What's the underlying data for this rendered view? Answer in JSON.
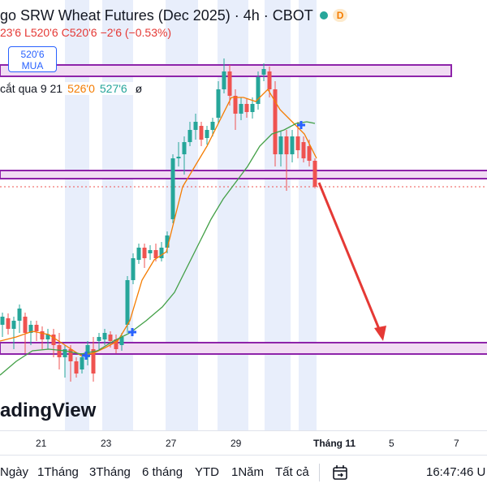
{
  "header": {
    "title": "go SRW Wheat Futures (Dec 2025) · 4h · CBOT",
    "status_badge": "D",
    "ohlc": {
      "open": "23'6",
      "low": "L520'6",
      "close": "C520'6",
      "change": "−2'6 (−0.53%)"
    }
  },
  "price_box": {
    "price": "520'6",
    "action": "MUA"
  },
  "indicator": {
    "label": "cắt qua 9 21",
    "ma_fast": "526'0",
    "ma_slow": "527'6",
    "symbol": "ø"
  },
  "watermark": "adingView",
  "time_axis": [
    "21",
    "23",
    "27",
    "29",
    "Tháng 11",
    "5",
    "7"
  ],
  "range_buttons": [
    "Ngày",
    "1Tháng",
    "3Tháng",
    "6 tháng",
    "YTD",
    "1Năm",
    "Tất cả"
  ],
  "clock": "16:47:46 U",
  "colors": {
    "up": "#26a69a",
    "down": "#ef5350",
    "ma_fast": "#f57c00",
    "ma_slow": "#43a047",
    "zone_fill": "#f1dcf3",
    "zone_border": "#8e24aa",
    "session_shade": "#e8eefb",
    "arrow": "#e53935",
    "marker": "#2962ff"
  },
  "chart_data": {
    "type": "candlestick",
    "series": [
      {
        "name": "ma_fast",
        "values": []
      },
      {
        "name": "ma_slow",
        "values": []
      }
    ]
  },
  "icons": {
    "calendar": "calendar-range-icon"
  }
}
